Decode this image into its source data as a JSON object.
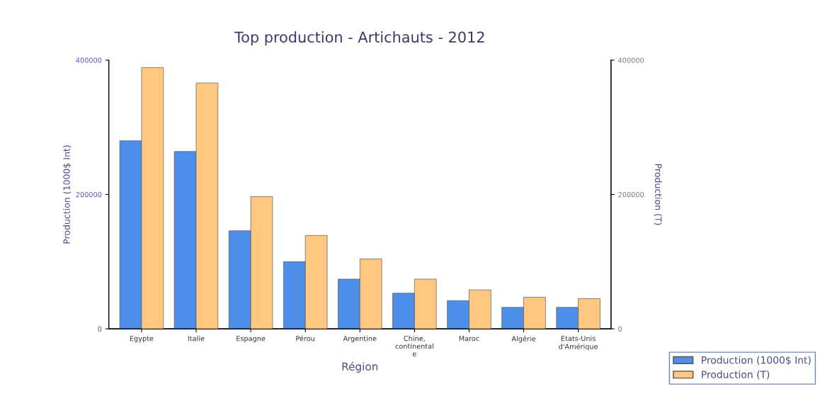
{
  "chart_data": {
    "type": "bar",
    "title": "Top production - Artichauts - 2012",
    "xlabel": "Région",
    "ylabel": "Production (1000$ Int)",
    "y2label": "Production (T)",
    "categories": [
      "Egypte",
      "Italie",
      "Espagne",
      "Pérou",
      "Argentine",
      "Chine,\ncontinental\ne",
      "Maroc",
      "Algérie",
      "Etats-Unis\nd'Amérique"
    ],
    "series": [
      {
        "name": "Production (1000$ Int)",
        "color": "#4d8fe8",
        "values": [
          280000,
          264000,
          146000,
          100000,
          74000,
          53000,
          42000,
          32000,
          32000
        ]
      },
      {
        "name": "Production (T)",
        "color": "#ffc77f",
        "axis": "y2",
        "values": [
          389000,
          366000,
          197000,
          139000,
          104000,
          74000,
          58000,
          47000,
          45000
        ]
      }
    ],
    "ylim": [
      0,
      400000
    ],
    "yticks": [
      0,
      200000,
      400000
    ],
    "y2lim": [
      0,
      400000
    ],
    "y2ticks": [
      0,
      200000,
      400000
    ],
    "legend": "bottom right",
    "grid": false
  }
}
